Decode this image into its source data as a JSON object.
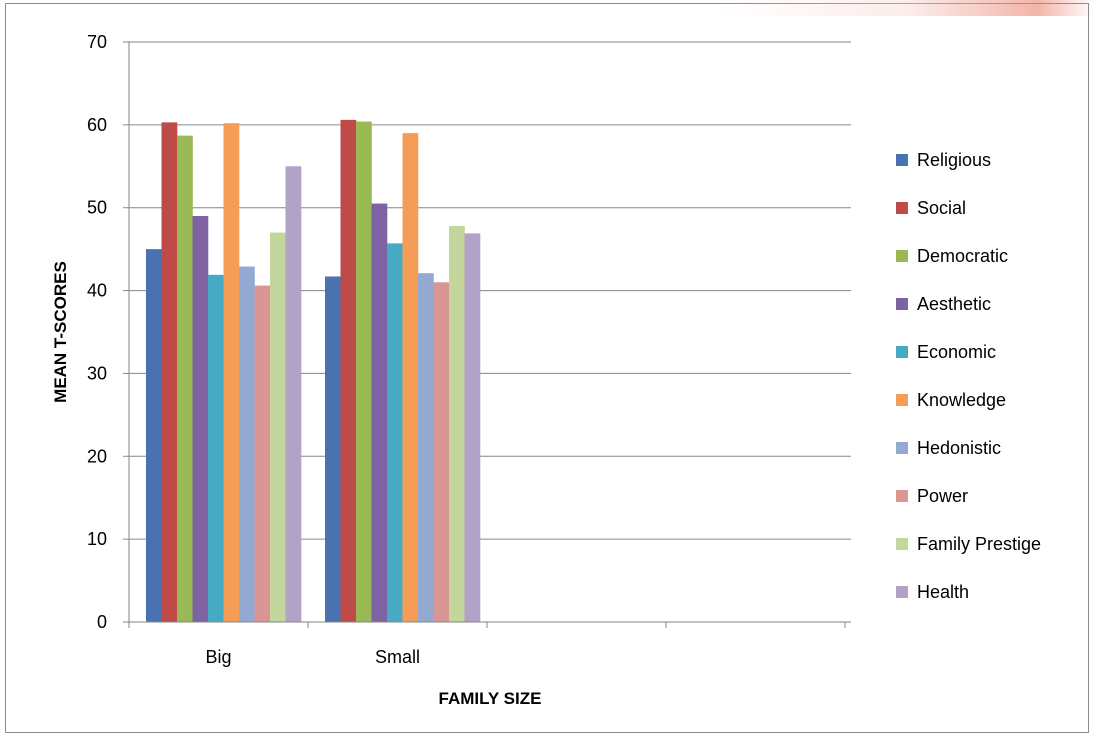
{
  "chart_data": {
    "type": "bar",
    "title": "",
    "xlabel": "FAMILY SIZE",
    "ylabel": "MEAN T-SCORES",
    "ylim": [
      0,
      70
    ],
    "yticks": [
      0,
      10,
      20,
      30,
      40,
      50,
      60,
      70
    ],
    "grid": true,
    "legend_position": "right",
    "categories": [
      "Big",
      "Small"
    ],
    "series": [
      {
        "name": "Religious",
        "color": "#4a72b0",
        "values": [
          45.0,
          41.7
        ]
      },
      {
        "name": "Social",
        "color": "#be4b48",
        "values": [
          60.3,
          60.6
        ]
      },
      {
        "name": "Democratic",
        "color": "#98b954",
        "values": [
          58.7,
          60.4
        ]
      },
      {
        "name": "Aesthetic",
        "color": "#7e62a1",
        "values": [
          49.0,
          50.5
        ]
      },
      {
        "name": "Economic",
        "color": "#46aac5",
        "values": [
          41.9,
          45.7
        ]
      },
      {
        "name": "Knowledge",
        "color": "#f59d56",
        "values": [
          60.2,
          59.0
        ]
      },
      {
        "name": "Hedonistic",
        "color": "#94a9d2",
        "values": [
          42.9,
          42.1
        ]
      },
      {
        "name": "Power",
        "color": "#d99694",
        "values": [
          40.6,
          41.0
        ]
      },
      {
        "name": "Family Prestige",
        "color": "#c3d69b",
        "values": [
          47.0,
          47.8
        ]
      },
      {
        "name": "Health",
        "color": "#b2a2c7",
        "values": [
          55.0,
          46.9
        ]
      }
    ]
  }
}
